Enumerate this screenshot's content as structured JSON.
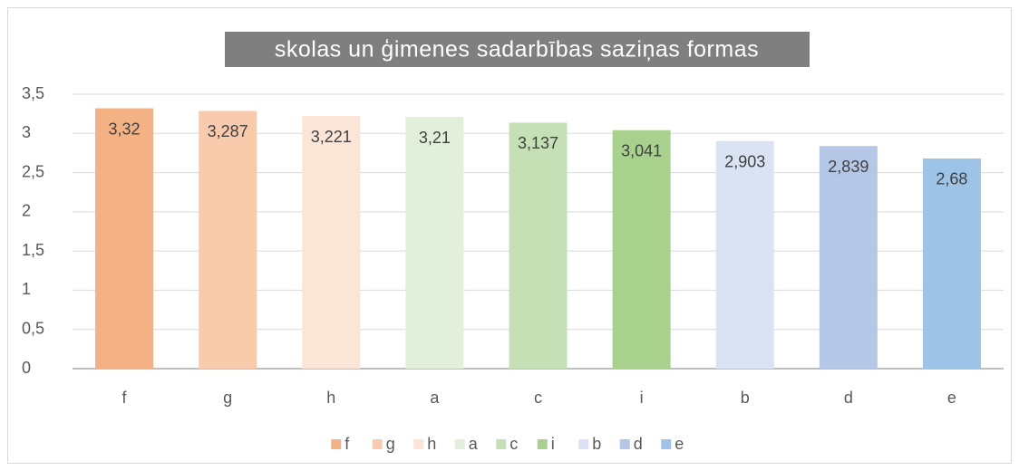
{
  "chart_data": {
    "type": "bar",
    "title": "skolas un ģimenes sadarbības saziņas formas",
    "categories": [
      "f",
      "g",
      "h",
      "a",
      "c",
      "i",
      "b",
      "d",
      "e"
    ],
    "values": [
      3.32,
      3.287,
      3.221,
      3.21,
      3.137,
      3.041,
      2.903,
      2.839,
      2.68
    ],
    "value_labels": [
      "3,32",
      "3,287",
      "3,221",
      "3,21",
      "3,137",
      "3,041",
      "2,903",
      "2,839",
      "2,68"
    ],
    "colors": [
      "#f4b183",
      "#f8cbad",
      "#fbe5d6",
      "#e2efda",
      "#c5e0b4",
      "#a9d18e",
      "#dae3f3",
      "#b4c7e7",
      "#9dc3e6"
    ],
    "ylim": [
      0,
      3.5
    ],
    "yticks": [
      0,
      {
        "value": 0.5,
        "label": "0,5"
      },
      1,
      {
        "value": 1.5,
        "label": "1,5"
      },
      2,
      {
        "value": 2.5,
        "label": "2,5"
      },
      3,
      {
        "value": 3.5,
        "label": "3,5"
      }
    ],
    "grid": true,
    "legend": "bottom"
  }
}
